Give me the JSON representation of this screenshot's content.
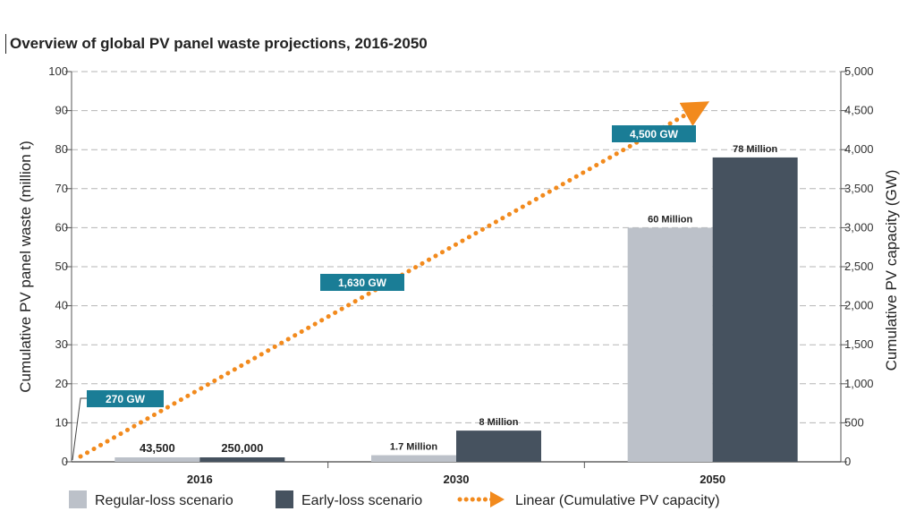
{
  "chart_data": {
    "type": "bar",
    "title": "Overview of global PV panel waste projections, 2016-2050",
    "categories": [
      "2016",
      "2030",
      "2050"
    ],
    "series": [
      {
        "name": "Regular-loss scenario",
        "values": [
          0.0435,
          1.7,
          60
        ],
        "labels": [
          "43,500",
          "1.7 Million",
          "60 Million"
        ],
        "color": "#bcc1c9"
      },
      {
        "name": "Early-loss scenario",
        "values": [
          0.25,
          8,
          78
        ],
        "labels": [
          "250,000",
          "8 Million",
          "78 Million"
        ],
        "color": "#46525f"
      }
    ],
    "line": {
      "name": "Linear (Cumulative PV capacity)",
      "values": [
        270,
        1630,
        4500
      ],
      "labels": [
        "270 GW",
        "1,630 GW",
        "4,500 GW"
      ],
      "color": "#f28a1d",
      "label_color": "#1a7d96"
    },
    "ylabel": "Cumulative PV  panel waste (million t)",
    "y2label": "Cumulative PV capacity (GW)",
    "ylim": [
      0,
      100
    ],
    "y2lim": [
      0,
      5000
    ],
    "yticks": [
      "0",
      "10",
      "20",
      "30",
      "40",
      "50",
      "60",
      "70",
      "80",
      "90",
      "100"
    ],
    "y2ticks": [
      "0",
      "500",
      "1,000",
      "1,500",
      "2,000",
      "2,500",
      "3,000",
      "3,500",
      "4,000",
      "4,500",
      "5,000"
    ],
    "grid": "horizontal dashed",
    "legend": "bottom"
  }
}
